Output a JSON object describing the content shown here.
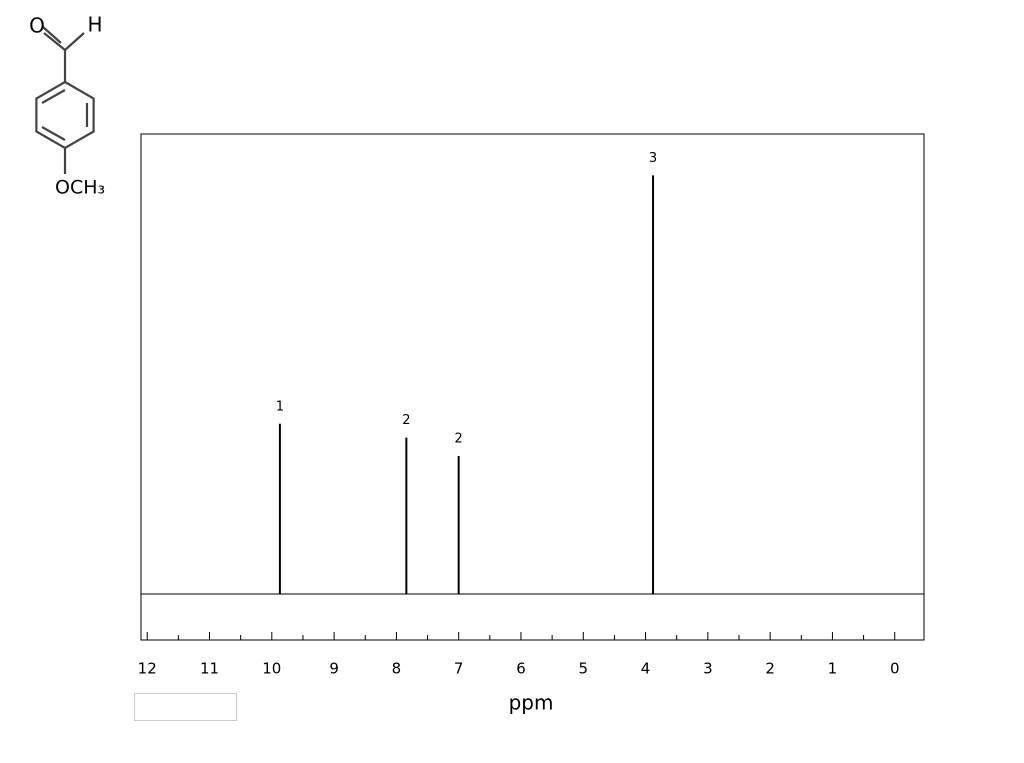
{
  "molecule": {
    "oxygen": "O",
    "hydrogen": "H",
    "methoxy": "OCH₃"
  },
  "chart_data": {
    "type": "spectrum",
    "x_label": "ppm",
    "peaks": [
      {
        "label": "1",
        "x": 9.87,
        "value": 0.37
      },
      {
        "label": "2",
        "x": 7.84,
        "value": 0.34
      },
      {
        "label": "2",
        "x": 7.0,
        "value": 0.3
      },
      {
        "label": "3",
        "x": 3.88,
        "value": 0.91
      }
    ],
    "color": "#000000",
    "xlim": [
      12.1,
      -0.47
    ],
    "xticks": [
      12,
      11,
      10,
      9,
      8,
      7,
      6,
      5,
      4,
      3,
      2,
      1,
      0
    ],
    "xminorticks": [
      11.5,
      10.5,
      9.5,
      8.5,
      7.5,
      6.5,
      5.5,
      4.5,
      3.5,
      2.5,
      1.5,
      0.5
    ],
    "ylim": [
      -0.1,
      1.0
    ]
  }
}
